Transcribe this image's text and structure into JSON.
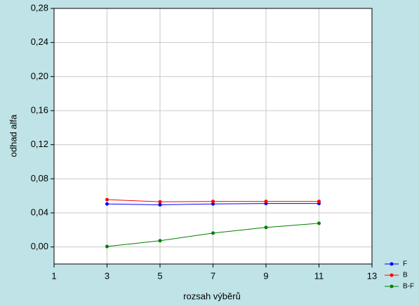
{
  "chart_data": {
    "type": "line",
    "x": [
      3,
      5,
      7,
      9,
      11
    ],
    "series": [
      {
        "name": "F",
        "color": "#0000ff",
        "values": [
          0.0505,
          0.0495,
          0.0505,
          0.051,
          0.051
        ]
      },
      {
        "name": "B",
        "color": "#ff0000",
        "values": [
          0.0555,
          0.053,
          0.0535,
          0.0535,
          0.0535
        ]
      },
      {
        "name": "B-F",
        "color": "#008000",
        "values": [
          0.0005,
          0.0073,
          0.0163,
          0.0229,
          0.0278
        ]
      }
    ],
    "xlabel": "rozsah výběrů",
    "ylabel": "odhad alfa",
    "xlim": [
      1,
      13
    ],
    "xticks": [
      1,
      3,
      5,
      7,
      9,
      11,
      13
    ],
    "ylim": [
      -0.02,
      0.28
    ],
    "yticks": [
      {
        "value": 0,
        "label": "0,00"
      },
      {
        "value": 0.04,
        "label": "0,04"
      },
      {
        "value": 0.08,
        "label": "0,08"
      },
      {
        "value": 0.12,
        "label": "0,12"
      },
      {
        "value": 0.16,
        "label": "0,16"
      },
      {
        "value": 0.2,
        "label": "0,20"
      },
      {
        "value": 0.24,
        "label": "0,24"
      },
      {
        "value": 0.28,
        "label": "0,28"
      }
    ],
    "grid": true,
    "legend": "lower right"
  }
}
